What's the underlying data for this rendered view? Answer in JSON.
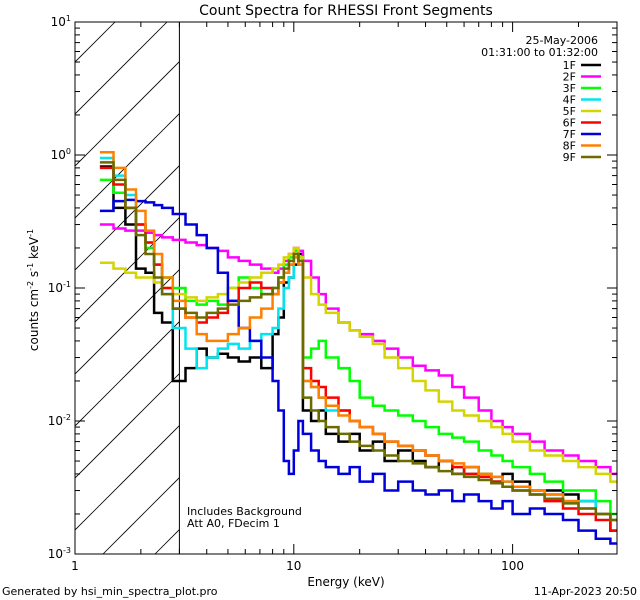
{
  "chart_data": {
    "type": "line",
    "title": "Count Spectra for RHESSI Front Segments",
    "xlabel": "Energy (keV)",
    "ylabel_parts": [
      "counts cm",
      "-2",
      " s",
      "-1",
      " keV",
      "-1"
    ],
    "xscale": "log",
    "yscale": "log",
    "xlim": [
      1,
      300
    ],
    "ylim": [
      0.001,
      10
    ],
    "x_ticks": [
      {
        "value": 1,
        "label": "1"
      },
      {
        "value": 10,
        "label": "10"
      },
      {
        "value": 100,
        "label": "100"
      }
    ],
    "y_ticks": [
      {
        "value": 0.001,
        "base": "10",
        "exp": "-3"
      },
      {
        "value": 0.01,
        "base": "10",
        "exp": "-2"
      },
      {
        "value": 0.1,
        "base": "10",
        "exp": "-1"
      },
      {
        "value": 1,
        "base": "10",
        "exp": "0"
      },
      {
        "value": 10,
        "base": "10",
        "exp": "1"
      }
    ],
    "hatched_region_xmax": 3,
    "date": "25-May-2006",
    "time_range": "01:31:00 to 01:32:00",
    "annotations": [
      "Includes Background",
      "Att A0, FDecim 1"
    ],
    "footer_left": "Generated by hsi_min_spectra_plot.pro",
    "footer_right": "11-Apr-2023 20:50",
    "legend_position": "top-right",
    "series": [
      {
        "name": "1F",
        "color": "#000000",
        "x": [
          1.3,
          1.5,
          1.7,
          1.9,
          2.1,
          2.3,
          2.5,
          2.8,
          3.2,
          3.6,
          4.0,
          4.5,
          5.0,
          5.6,
          6.3,
          7.1,
          8.0,
          8.5,
          9.0,
          9.5,
          10.0,
          10.5,
          11,
          12,
          13,
          14,
          16,
          18,
          20,
          23,
          26,
          30,
          35,
          40,
          46,
          53,
          60,
          70,
          80,
          90,
          100,
          120,
          140,
          170,
          200,
          240,
          280
        ],
        "y": [
          0.82,
          0.4,
          0.3,
          0.14,
          0.13,
          0.065,
          0.055,
          0.02,
          0.025,
          0.035,
          0.03,
          0.032,
          0.03,
          0.028,
          0.03,
          0.025,
          0.045,
          0.06,
          0.11,
          0.12,
          0.15,
          0.18,
          0.012,
          0.01,
          0.012,
          0.008,
          0.007,
          0.008,
          0.006,
          0.007,
          0.005,
          0.006,
          0.005,
          0.0045,
          0.005,
          0.004,
          0.0045,
          0.004,
          0.0035,
          0.004,
          0.0035,
          0.003,
          0.003,
          0.0028,
          0.0025,
          0.002,
          0.0015
        ]
      },
      {
        "name": "2F",
        "color": "#ff00ff",
        "x": [
          1.3,
          1.5,
          1.7,
          1.9,
          2.1,
          2.3,
          2.5,
          2.8,
          3.2,
          3.6,
          4.0,
          4.5,
          5.0,
          5.6,
          6.3,
          7.1,
          8.0,
          8.5,
          9.0,
          9.5,
          10.0,
          10.5,
          11,
          12,
          13,
          14,
          16,
          18,
          20,
          23,
          26,
          30,
          35,
          40,
          46,
          53,
          60,
          70,
          80,
          90,
          100,
          120,
          140,
          170,
          200,
          240,
          280
        ],
        "y": [
          0.3,
          0.28,
          0.27,
          0.27,
          0.26,
          0.25,
          0.24,
          0.23,
          0.22,
          0.21,
          0.2,
          0.19,
          0.17,
          0.16,
          0.15,
          0.14,
          0.13,
          0.14,
          0.16,
          0.18,
          0.2,
          0.19,
          0.16,
          0.12,
          0.09,
          0.07,
          0.055,
          0.048,
          0.045,
          0.04,
          0.035,
          0.03,
          0.026,
          0.024,
          0.022,
          0.018,
          0.015,
          0.012,
          0.01,
          0.009,
          0.008,
          0.007,
          0.006,
          0.0055,
          0.005,
          0.0045,
          0.004
        ]
      },
      {
        "name": "3F",
        "color": "#00ff00",
        "x": [
          1.3,
          1.5,
          1.7,
          1.9,
          2.1,
          2.3,
          2.5,
          2.8,
          3.2,
          3.6,
          4.0,
          4.5,
          5.0,
          5.6,
          6.3,
          7.1,
          8.0,
          8.5,
          9.0,
          9.5,
          10.0,
          10.5,
          11,
          12,
          13,
          14,
          16,
          18,
          20,
          23,
          26,
          30,
          35,
          40,
          46,
          53,
          60,
          70,
          80,
          90,
          100,
          120,
          140,
          170,
          200,
          240,
          280
        ],
        "y": [
          0.65,
          0.52,
          0.4,
          0.3,
          0.2,
          0.15,
          0.12,
          0.1,
          0.08,
          0.075,
          0.08,
          0.075,
          0.1,
          0.12,
          0.1,
          0.09,
          0.1,
          0.12,
          0.15,
          0.17,
          0.19,
          0.17,
          0.03,
          0.035,
          0.04,
          0.03,
          0.025,
          0.02,
          0.015,
          0.013,
          0.012,
          0.011,
          0.01,
          0.009,
          0.008,
          0.0075,
          0.007,
          0.006,
          0.0055,
          0.005,
          0.0045,
          0.004,
          0.0035,
          0.003,
          0.003,
          0.0025,
          0.002
        ]
      },
      {
        "name": "4F",
        "color": "#00e5ee",
        "x": [
          1.3,
          1.5,
          1.7,
          1.9,
          2.1,
          2.3,
          2.5,
          2.8,
          3.2,
          3.6,
          4.0,
          4.5,
          5.0,
          5.6,
          6.3,
          7.1,
          8.0,
          8.5,
          9.0,
          9.5,
          10.0,
          10.5,
          11,
          12,
          13,
          14,
          16,
          18,
          20,
          23,
          26,
          30,
          35,
          40,
          46,
          53,
          60,
          70,
          80,
          90,
          100,
          120,
          140,
          170,
          200,
          240,
          280
        ],
        "y": [
          0.95,
          0.7,
          0.5,
          0.3,
          0.22,
          0.15,
          0.09,
          0.05,
          0.035,
          0.025,
          0.03,
          0.035,
          0.038,
          0.035,
          0.04,
          0.045,
          0.05,
          0.07,
          0.1,
          0.12,
          0.17,
          0.15,
          0.02,
          0.018,
          0.015,
          0.012,
          0.012,
          0.01,
          0.009,
          0.008,
          0.007,
          0.0065,
          0.006,
          0.0055,
          0.005,
          0.0045,
          0.004,
          0.004,
          0.0038,
          0.0035,
          0.0032,
          0.003,
          0.0028,
          0.0025,
          0.0025,
          0.002,
          0.0018
        ]
      },
      {
        "name": "5F",
        "color": "#d4d400",
        "x": [
          1.3,
          1.5,
          1.7,
          1.9,
          2.1,
          2.3,
          2.5,
          2.8,
          3.2,
          3.6,
          4.0,
          4.5,
          5.0,
          5.6,
          6.3,
          7.1,
          8.0,
          8.5,
          9.0,
          9.5,
          10.0,
          10.5,
          11,
          12,
          13,
          14,
          16,
          18,
          20,
          23,
          26,
          30,
          35,
          40,
          46,
          53,
          60,
          70,
          80,
          90,
          100,
          120,
          140,
          170,
          200,
          240,
          280
        ],
        "y": [
          0.155,
          0.14,
          0.13,
          0.12,
          0.12,
          0.11,
          0.1,
          0.09,
          0.085,
          0.08,
          0.085,
          0.09,
          0.1,
          0.11,
          0.12,
          0.13,
          0.14,
          0.15,
          0.17,
          0.18,
          0.2,
          0.17,
          0.12,
          0.09,
          0.075,
          0.065,
          0.055,
          0.048,
          0.043,
          0.038,
          0.03,
          0.025,
          0.02,
          0.017,
          0.014,
          0.012,
          0.011,
          0.01,
          0.009,
          0.008,
          0.007,
          0.006,
          0.0055,
          0.005,
          0.0045,
          0.004,
          0.0035
        ]
      },
      {
        "name": "6F",
        "color": "#ff0000",
        "x": [
          1.3,
          1.5,
          1.7,
          1.9,
          2.1,
          2.3,
          2.5,
          2.8,
          3.2,
          3.6,
          4.0,
          4.5,
          5.0,
          5.6,
          6.3,
          7.1,
          8.0,
          8.5,
          9.0,
          9.5,
          10.0,
          10.5,
          11,
          12,
          13,
          14,
          16,
          18,
          20,
          23,
          26,
          30,
          35,
          40,
          46,
          53,
          60,
          70,
          80,
          90,
          100,
          120,
          140,
          170,
          200,
          240,
          280
        ],
        "y": [
          0.8,
          0.6,
          0.4,
          0.3,
          0.22,
          0.15,
          0.1,
          0.07,
          0.06,
          0.055,
          0.06,
          0.065,
          0.08,
          0.1,
          0.11,
          0.1,
          0.09,
          0.11,
          0.13,
          0.15,
          0.18,
          0.16,
          0.025,
          0.02,
          0.018,
          0.015,
          0.012,
          0.01,
          0.009,
          0.008,
          0.007,
          0.0065,
          0.006,
          0.0055,
          0.005,
          0.0045,
          0.004,
          0.0038,
          0.0035,
          0.0032,
          0.003,
          0.0028,
          0.0025,
          0.0022,
          0.002,
          0.0018,
          0.0015
        ]
      },
      {
        "name": "7F",
        "color": "#0000dd",
        "x": [
          1.3,
          1.5,
          1.7,
          1.9,
          2.1,
          2.3,
          2.5,
          2.8,
          3.2,
          3.6,
          4.0,
          4.5,
          5.0,
          5.6,
          6.3,
          7.1,
          8.0,
          8.5,
          9.0,
          9.5,
          10.0,
          10.5,
          11,
          12,
          13,
          14,
          16,
          18,
          20,
          23,
          26,
          30,
          35,
          40,
          46,
          53,
          60,
          70,
          80,
          90,
          100,
          120,
          140,
          170,
          200,
          240,
          280
        ],
        "y": [
          0.38,
          0.45,
          0.46,
          0.45,
          0.44,
          0.42,
          0.4,
          0.36,
          0.3,
          0.25,
          0.2,
          0.13,
          0.08,
          0.05,
          0.04,
          0.03,
          0.02,
          0.012,
          0.005,
          0.004,
          0.006,
          0.01,
          0.008,
          0.006,
          0.005,
          0.0045,
          0.004,
          0.0045,
          0.0035,
          0.004,
          0.003,
          0.0035,
          0.003,
          0.0028,
          0.003,
          0.0025,
          0.0028,
          0.0025,
          0.0022,
          0.0025,
          0.002,
          0.0022,
          0.002,
          0.0018,
          0.0015,
          0.0013,
          0.0012
        ]
      },
      {
        "name": "8F",
        "color": "#ff8000",
        "x": [
          1.3,
          1.5,
          1.7,
          1.9,
          2.1,
          2.3,
          2.5,
          2.8,
          3.2,
          3.6,
          4.0,
          4.5,
          5.0,
          5.6,
          6.3,
          7.1,
          8.0,
          8.5,
          9.0,
          9.5,
          10.0,
          10.5,
          11,
          12,
          13,
          14,
          16,
          18,
          20,
          23,
          26,
          30,
          35,
          40,
          46,
          53,
          60,
          70,
          80,
          90,
          100,
          120,
          140,
          170,
          200,
          240,
          280
        ],
        "y": [
          1.05,
          0.8,
          0.55,
          0.38,
          0.27,
          0.18,
          0.12,
          0.08,
          0.06,
          0.045,
          0.04,
          0.04,
          0.045,
          0.05,
          0.06,
          0.07,
          0.09,
          0.11,
          0.13,
          0.15,
          0.17,
          0.15,
          0.02,
          0.018,
          0.015,
          0.013,
          0.011,
          0.01,
          0.009,
          0.008,
          0.007,
          0.0065,
          0.006,
          0.0055,
          0.005,
          0.0048,
          0.0045,
          0.004,
          0.0038,
          0.0035,
          0.0032,
          0.003,
          0.0028,
          0.0025,
          0.0022,
          0.002,
          0.0018
        ]
      },
      {
        "name": "9F",
        "color": "#6b6b00",
        "x": [
          1.3,
          1.5,
          1.7,
          1.9,
          2.1,
          2.3,
          2.5,
          2.8,
          3.2,
          3.6,
          4.0,
          4.5,
          5.0,
          5.6,
          6.3,
          7.1,
          8.0,
          8.5,
          9.0,
          9.5,
          10.0,
          10.5,
          11,
          12,
          13,
          14,
          16,
          18,
          20,
          23,
          26,
          30,
          35,
          40,
          46,
          53,
          60,
          70,
          80,
          90,
          100,
          120,
          140,
          170,
          200,
          240,
          280
        ],
        "y": [
          0.88,
          0.65,
          0.4,
          0.25,
          0.18,
          0.12,
          0.09,
          0.07,
          0.065,
          0.06,
          0.065,
          0.07,
          0.075,
          0.08,
          0.085,
          0.09,
          0.1,
          0.12,
          0.14,
          0.16,
          0.18,
          0.16,
          0.015,
          0.012,
          0.01,
          0.009,
          0.008,
          0.007,
          0.0065,
          0.006,
          0.0055,
          0.005,
          0.0048,
          0.0045,
          0.0042,
          0.004,
          0.0038,
          0.0036,
          0.0034,
          0.0032,
          0.003,
          0.0028,
          0.0026,
          0.0024,
          0.0022,
          0.002,
          0.0018
        ]
      }
    ]
  }
}
